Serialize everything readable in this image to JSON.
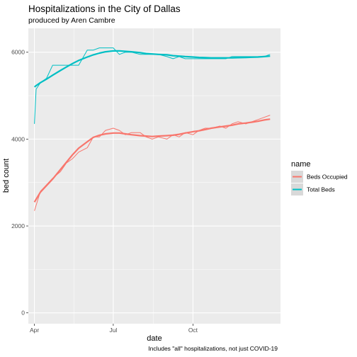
{
  "chart_data": {
    "type": "line",
    "title": "Hospitalizations in the City of Dallas",
    "subtitle": "produced by Aren Cambre",
    "xlabel": "date",
    "ylabel": "bed count",
    "caption": "Includes \"all\" hospitalizations, not just COVID-19",
    "x_ticks": [
      "Apr",
      "Jul",
      "Oct"
    ],
    "x_tick_dates": [
      "2020-04-01",
      "2020-07-01",
      "2020-10-01"
    ],
    "xlim": [
      "2020-03-25",
      "2021-01-10"
    ],
    "y_ticks": [
      0,
      2000,
      4000,
      6000
    ],
    "ylim": [
      -250,
      6550
    ],
    "grid": true,
    "legend": {
      "title": "name",
      "placement": "right"
    },
    "series": [
      {
        "name": "Beds Occupied",
        "color": "#F8766D",
        "x": [
          "2020-04-01",
          "2020-04-08",
          "2020-04-15",
          "2020-04-22",
          "2020-05-01",
          "2020-05-08",
          "2020-05-15",
          "2020-05-22",
          "2020-06-01",
          "2020-06-08",
          "2020-06-15",
          "2020-06-22",
          "2020-07-01",
          "2020-07-08",
          "2020-07-15",
          "2020-07-22",
          "2020-08-01",
          "2020-08-08",
          "2020-08-15",
          "2020-08-22",
          "2020-09-01",
          "2020-09-08",
          "2020-09-15",
          "2020-09-22",
          "2020-10-01",
          "2020-10-08",
          "2020-10-15",
          "2020-10-22",
          "2020-11-01",
          "2020-11-08",
          "2020-11-15",
          "2020-11-22",
          "2020-12-01",
          "2020-12-08",
          "2020-12-15",
          "2020-12-22",
          "2020-12-29"
        ],
        "values": [
          2350,
          2800,
          2950,
          3100,
          3250,
          3450,
          3550,
          3700,
          3800,
          4050,
          4050,
          4200,
          4250,
          4200,
          4100,
          4150,
          4150,
          4050,
          4000,
          4050,
          4000,
          4100,
          4050,
          4150,
          4100,
          4200,
          4250,
          4250,
          4300,
          4250,
          4350,
          4400,
          4350,
          4400,
          4450,
          4500,
          4550
        ],
        "trend": [
          2550,
          2780,
          2930,
          3080,
          3300,
          3470,
          3640,
          3790,
          3940,
          4040,
          4090,
          4120,
          4140,
          4140,
          4120,
          4100,
          4080,
          4070,
          4060,
          4070,
          4080,
          4090,
          4110,
          4140,
          4170,
          4190,
          4220,
          4250,
          4280,
          4300,
          4320,
          4350,
          4370,
          4390,
          4410,
          4440,
          4460
        ]
      },
      {
        "name": "Total Beds",
        "color": "#00BFC4",
        "x": [
          "2020-04-01",
          "2020-04-03",
          "2020-04-08",
          "2020-04-15",
          "2020-04-22",
          "2020-05-01",
          "2020-05-08",
          "2020-05-15",
          "2020-05-22",
          "2020-06-01",
          "2020-06-08",
          "2020-06-15",
          "2020-06-22",
          "2020-07-01",
          "2020-07-08",
          "2020-07-15",
          "2020-07-22",
          "2020-08-01",
          "2020-08-08",
          "2020-08-15",
          "2020-08-22",
          "2020-09-01",
          "2020-09-08",
          "2020-09-15",
          "2020-09-22",
          "2020-10-01",
          "2020-10-08",
          "2020-10-15",
          "2020-10-22",
          "2020-11-01",
          "2020-11-08",
          "2020-11-15",
          "2020-11-22",
          "2020-12-01",
          "2020-12-08",
          "2020-12-15",
          "2020-12-22",
          "2020-12-29"
        ],
        "values": [
          4350,
          5150,
          5300,
          5400,
          5700,
          5700,
          5700,
          5700,
          5700,
          6050,
          6050,
          6100,
          6100,
          6100,
          5950,
          6000,
          6000,
          5950,
          5950,
          5950,
          5950,
          5900,
          5850,
          5900,
          5850,
          5850,
          5850,
          5850,
          5850,
          5850,
          5850,
          5900,
          5900,
          5900,
          5900,
          5900,
          5900,
          5950
        ],
        "trend": [
          5200,
          5230,
          5300,
          5380,
          5470,
          5580,
          5660,
          5740,
          5810,
          5890,
          5940,
          5980,
          6010,
          6030,
          6030,
          6020,
          6010,
          5990,
          5970,
          5960,
          5950,
          5940,
          5920,
          5910,
          5900,
          5890,
          5880,
          5875,
          5870,
          5870,
          5870,
          5870,
          5875,
          5880,
          5885,
          5890,
          5900,
          5910
        ]
      }
    ]
  }
}
